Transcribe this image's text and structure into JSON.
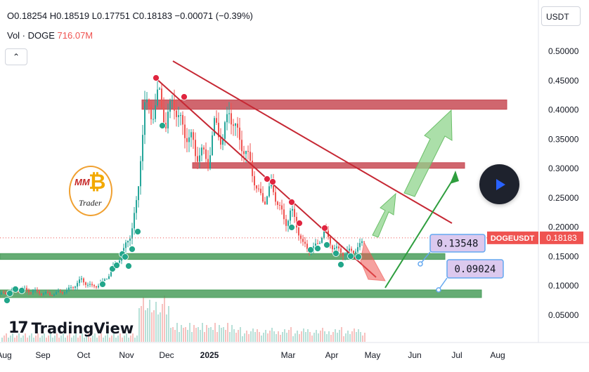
{
  "header": {
    "ohlc_text": "O0.18254 H0.18519 L0.17751 C0.18183 −0.00071 (−0.39%)",
    "vol_label": "Vol · DOGE",
    "vol_value": "716.07M",
    "currency": "USDT",
    "collapse_icon": "chevron-up-icon"
  },
  "branding": {
    "logo_text": "TradingView",
    "badge_mm": "MM",
    "badge_trader": "Trader"
  },
  "colors": {
    "bull": "#26a69a",
    "bear": "#ef5350",
    "trendline": "#c62834",
    "resistance_zone": "#c84b55",
    "support_zone": "#4a9e5c",
    "arrow_green": "#8fd48c",
    "label_fill": "#dcc9ee",
    "label_border": "#64a8f0"
  },
  "chart_data": {
    "type": "candlestick",
    "symbol": "DOGEUSDT",
    "last_price": "0.18183",
    "y_axis": {
      "range": [
        0.02,
        0.52
      ],
      "ticks": [
        "0.50000",
        "0.45000",
        "0.40000",
        "0.35000",
        "0.30000",
        "0.25000",
        "0.20000",
        "0.15000",
        "0.10000",
        "0.05000"
      ]
    },
    "x_axis": {
      "ticks": [
        "Aug",
        "Sep",
        "Oct",
        "Nov",
        "Dec",
        "2025",
        "Mar",
        "Apr",
        "May",
        "Jun",
        "Jul",
        "Aug"
      ]
    },
    "price_path": [
      [
        0,
        0.085
      ],
      [
        25,
        0.095
      ],
      [
        50,
        0.09
      ],
      [
        70,
        0.085
      ],
      [
        95,
        0.092
      ],
      [
        115,
        0.11
      ],
      [
        130,
        0.098
      ],
      [
        145,
        0.105
      ],
      [
        160,
        0.13
      ],
      [
        175,
        0.16
      ],
      [
        185,
        0.19
      ],
      [
        195,
        0.25
      ],
      [
        200,
        0.34
      ],
      [
        205,
        0.41
      ],
      [
        215,
        0.39
      ],
      [
        225,
        0.43
      ],
      [
        235,
        0.375
      ],
      [
        245,
        0.42
      ],
      [
        252,
        0.39
      ],
      [
        262,
        0.36
      ],
      [
        272,
        0.35
      ],
      [
        278,
        0.32
      ],
      [
        285,
        0.33
      ],
      [
        295,
        0.31
      ],
      [
        305,
        0.38
      ],
      [
        315,
        0.345
      ],
      [
        325,
        0.4
      ],
      [
        333,
        0.37
      ],
      [
        345,
        0.335
      ],
      [
        355,
        0.31
      ],
      [
        365,
        0.26
      ],
      [
        375,
        0.245
      ],
      [
        385,
        0.27
      ],
      [
        395,
        0.24
      ],
      [
        405,
        0.205
      ],
      [
        413,
        0.23
      ],
      [
        422,
        0.2
      ],
      [
        430,
        0.17
      ],
      [
        440,
        0.16
      ],
      [
        450,
        0.168
      ],
      [
        460,
        0.195
      ],
      [
        470,
        0.17
      ],
      [
        480,
        0.16
      ],
      [
        490,
        0.155
      ],
      [
        500,
        0.16
      ],
      [
        510,
        0.165
      ],
      [
        518,
        0.182
      ]
    ],
    "zones": [
      {
        "type": "resistance",
        "y1": 0.417,
        "y2": 0.401,
        "x_start": 0.4,
        "x_end": 0.86
      },
      {
        "type": "resistance",
        "y1": 0.31,
        "y2": 0.302,
        "x_start": 0.49,
        "x_end": 0.79
      },
      {
        "type": "support",
        "y1": 0.155,
        "y2": 0.145,
        "x_start": 0.0,
        "x_end": 0.77
      },
      {
        "type": "support",
        "y1": 0.093,
        "y2": 0.08,
        "x_start": 0.0,
        "x_end": 0.82
      }
    ],
    "price_labels": [
      "0.13548",
      "0.09024"
    ]
  }
}
